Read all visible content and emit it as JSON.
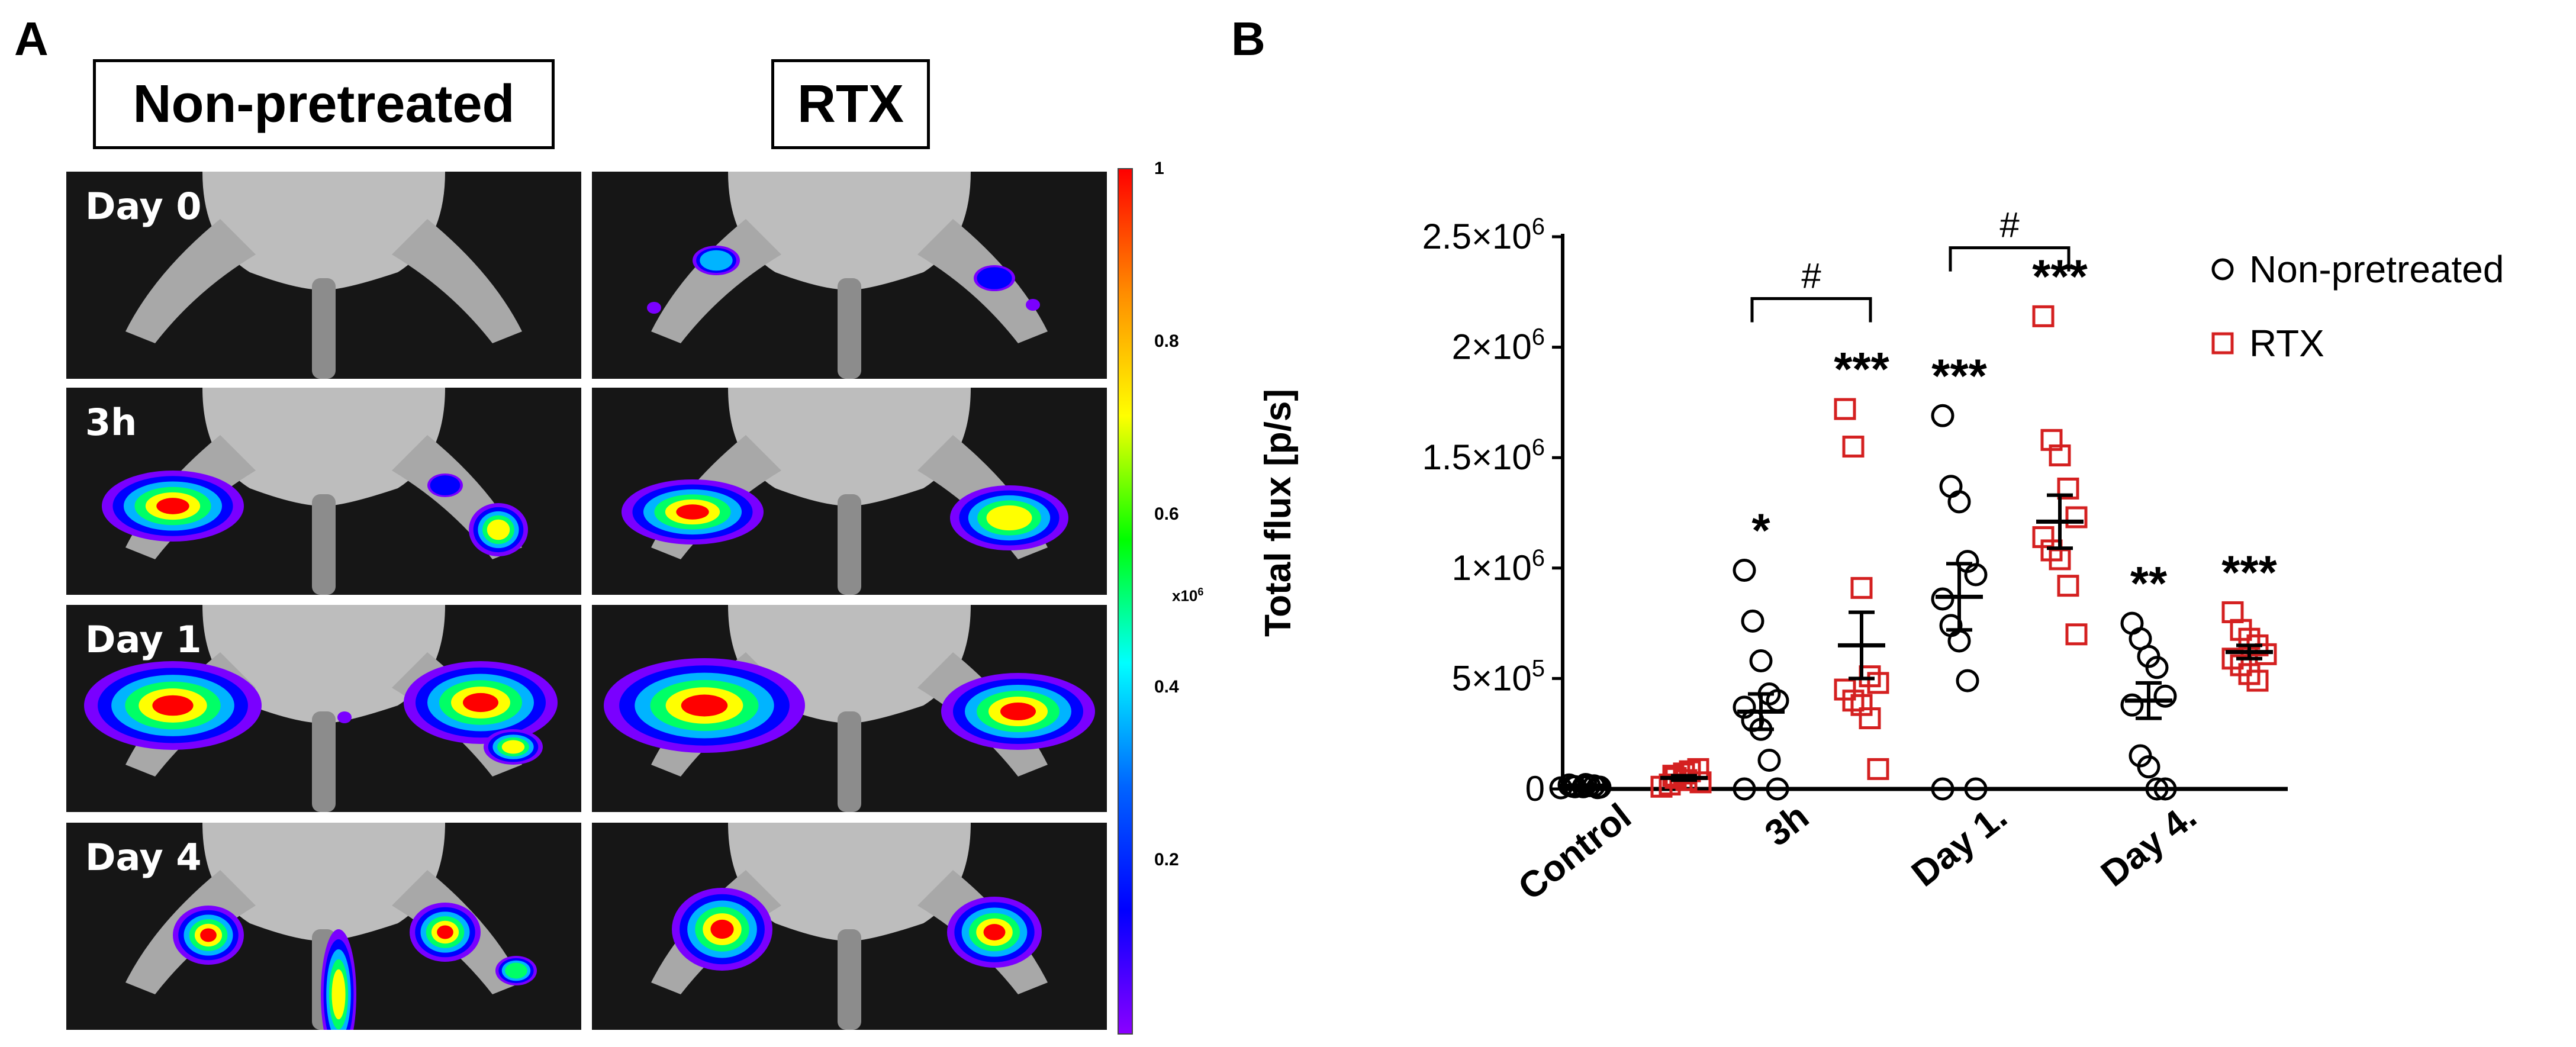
{
  "panel_a": {
    "letter": "A",
    "conditions": [
      "Non-pretreated",
      "RTX"
    ],
    "rows": [
      "Day 0",
      "3h",
      "Day 1",
      "Day 4"
    ],
    "colorbar": {
      "ticks": [
        "1",
        "0.8",
        "0.6",
        "0.4",
        "0.2"
      ],
      "unit": "x10",
      "unit_exp": "6",
      "gradient_colors": [
        "#ff0000",
        "#ff8c00",
        "#ffff00",
        "#00ff00",
        "#00ffff",
        "#0064ff",
        "#0000ff",
        "#8a00ff"
      ]
    }
  },
  "panel_b": {
    "letter": "B"
  },
  "chart_data": {
    "type": "scatter",
    "ylabel": "Total flux [p/s]",
    "xlabel": "",
    "ylim": [
      0,
      2500000
    ],
    "yticks": [
      0,
      500000,
      1000000,
      1500000,
      2000000,
      2500000
    ],
    "ytick_labels": [
      {
        "base": "0",
        "exp": ""
      },
      {
        "base": "5×10",
        "exp": "5"
      },
      {
        "base": "1×10",
        "exp": "6"
      },
      {
        "base": "1.5×10",
        "exp": "6"
      },
      {
        "base": "2×10",
        "exp": "6"
      },
      {
        "base": "2.5×10",
        "exp": "6"
      }
    ],
    "categories": [
      "Control",
      "3h",
      "Day 1.",
      "Day 4."
    ],
    "legend_position": "top-right",
    "series": [
      {
        "name": "Non-pretreated",
        "marker": "circle",
        "color": "#000000",
        "values": [
          [
            5000,
            10000,
            15000,
            20000,
            8000,
            12000,
            18000,
            10000,
            6000,
            14000
          ],
          [
            990000,
            760000,
            580000,
            430000,
            400000,
            370000,
            310000,
            270000,
            130000,
            0,
            0
          ],
          [
            1690000,
            1370000,
            1300000,
            1030000,
            970000,
            860000,
            740000,
            670000,
            490000,
            0,
            0
          ],
          [
            750000,
            680000,
            600000,
            550000,
            420000,
            380000,
            150000,
            100000,
            0,
            0
          ]
        ],
        "means": [
          15000,
          350000,
          870000,
          400000
        ],
        "sems": [
          3000,
          80000,
          150000,
          80000
        ],
        "significance": [
          "",
          "*",
          "***",
          "**"
        ]
      },
      {
        "name": "RTX",
        "marker": "square",
        "color": "#d42020",
        "values": [
          [
            10000,
            50000,
            80000,
            40000,
            30000,
            60000,
            20000,
            70000,
            90000
          ],
          [
            1720000,
            1550000,
            910000,
            510000,
            480000,
            450000,
            400000,
            380000,
            320000,
            90000
          ],
          [
            2140000,
            1580000,
            1510000,
            1360000,
            1230000,
            1140000,
            1080000,
            1040000,
            920000,
            700000
          ],
          [
            800000,
            720000,
            680000,
            650000,
            610000,
            590000,
            560000,
            520000,
            490000
          ]
        ],
        "means": [
          50000,
          650000,
          1210000,
          620000
        ],
        "sems": [
          10000,
          150000,
          120000,
          30000
        ],
        "significance": [
          "",
          "***",
          "***",
          "***"
        ]
      }
    ],
    "brackets": [
      {
        "category": 1,
        "label": "#"
      },
      {
        "category": 2,
        "label": "#"
      }
    ]
  }
}
